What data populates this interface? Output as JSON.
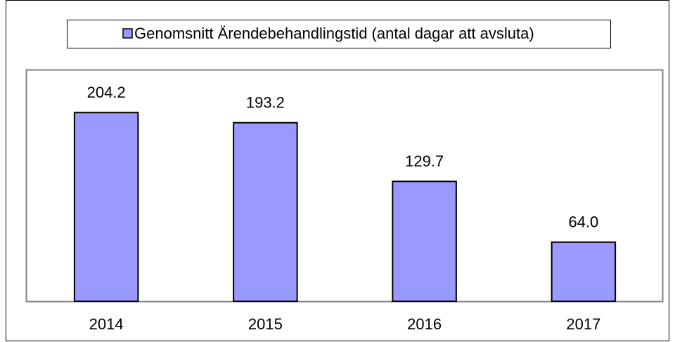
{
  "chart_data": {
    "type": "bar",
    "categories": [
      "2014",
      "2015",
      "2016",
      "2017"
    ],
    "series": [
      {
        "name": "Genomsnitt Ärendebehandlingstid (antal dagar att avsluta)",
        "color": "#9999ff",
        "values": [
          204.2,
          193.2,
          129.7,
          64.0
        ],
        "value_labels": [
          "204.2",
          "193.2",
          "129.7",
          "64.0"
        ]
      }
    ],
    "ylim": [
      0,
      250
    ],
    "legend": "top"
  }
}
